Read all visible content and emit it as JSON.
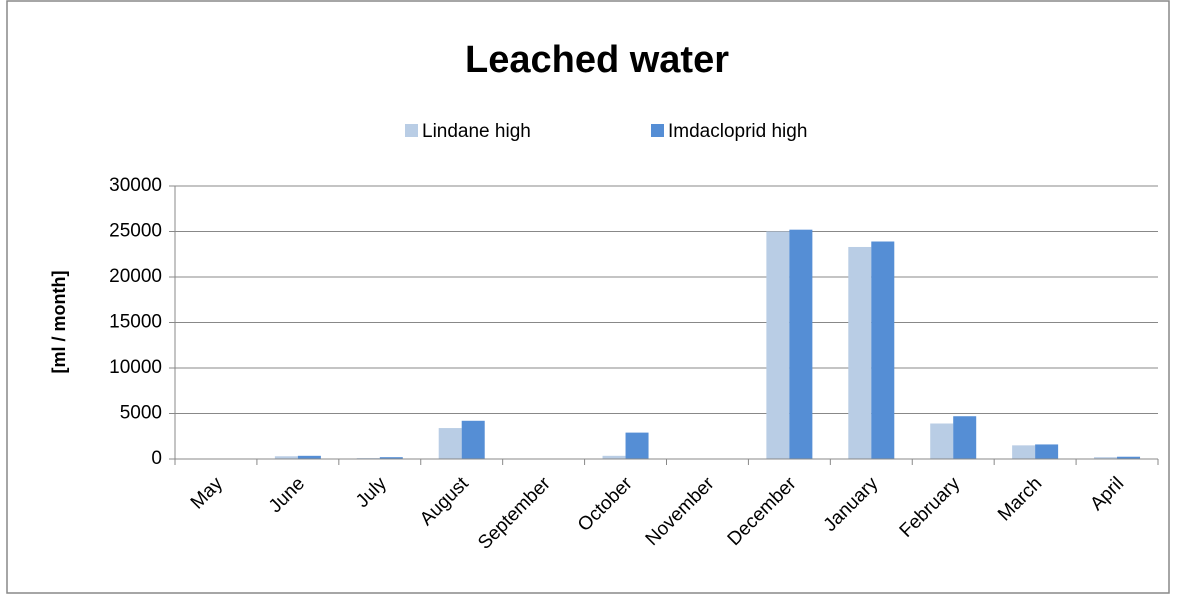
{
  "chart_data": {
    "type": "bar",
    "title": "Leached water",
    "y_label": "[ml / month]",
    "categories": [
      "May",
      "June",
      "July",
      "August",
      "September",
      "October",
      "November",
      "December",
      "January",
      "February",
      "March",
      "April"
    ],
    "series": [
      {
        "name": "Lindane high",
        "color": "#b9cde5",
        "values": [
          0,
          300,
          100,
          3400,
          0,
          350,
          0,
          25000,
          23300,
          3900,
          1500,
          200
        ]
      },
      {
        "name": "Imdacloprid high",
        "color": "#558ed5",
        "values": [
          0,
          350,
          200,
          4200,
          0,
          2900,
          0,
          25200,
          23900,
          4700,
          1600,
          250
        ]
      }
    ],
    "ylim": [
      0,
      30000
    ],
    "yticks": [
      0,
      5000,
      10000,
      15000,
      20000,
      25000,
      30000
    ],
    "grid": true,
    "legend": "top"
  }
}
